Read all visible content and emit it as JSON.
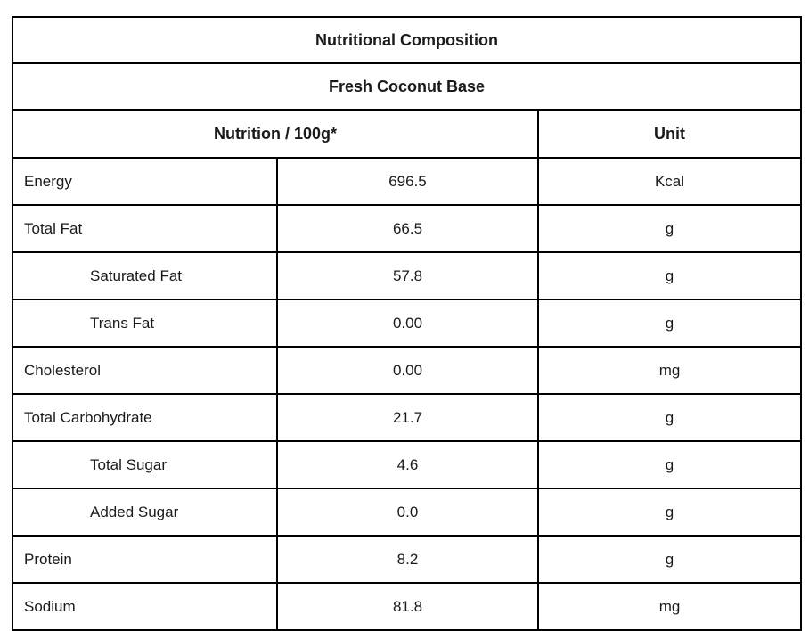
{
  "document": {
    "title": "Nutritional Composition",
    "subtitle": "Fresh Coconut Base",
    "header": {
      "nutrition_col": "Nutrition / 100g*",
      "unit_col": "Unit"
    },
    "rows": [
      {
        "label": "Energy",
        "value": "696.5",
        "unit": "Kcal",
        "indent": false
      },
      {
        "label": "Total Fat",
        "value": "66.5",
        "unit": "g",
        "indent": false
      },
      {
        "label": "Saturated Fat",
        "value": "57.8",
        "unit": "g",
        "indent": true
      },
      {
        "label": "Trans Fat",
        "value": "0.00",
        "unit": "g",
        "indent": true
      },
      {
        "label": "Cholesterol",
        "value": "0.00",
        "unit": "mg",
        "indent": false
      },
      {
        "label": "Total Carbohydrate",
        "value": "21.7",
        "unit": "g",
        "indent": false
      },
      {
        "label": "Total Sugar",
        "value": "4.6",
        "unit": "g",
        "indent": true
      },
      {
        "label": "Added Sugar",
        "value": "0.0",
        "unit": "g",
        "indent": true
      },
      {
        "label": "Protein",
        "value": "8.2",
        "unit": "g",
        "indent": false
      },
      {
        "label": "Sodium",
        "value": "81.8",
        "unit": "mg",
        "indent": false
      }
    ],
    "colors": {
      "border": "#000000",
      "background": "#ffffff",
      "text": "#1a1a1a"
    }
  }
}
